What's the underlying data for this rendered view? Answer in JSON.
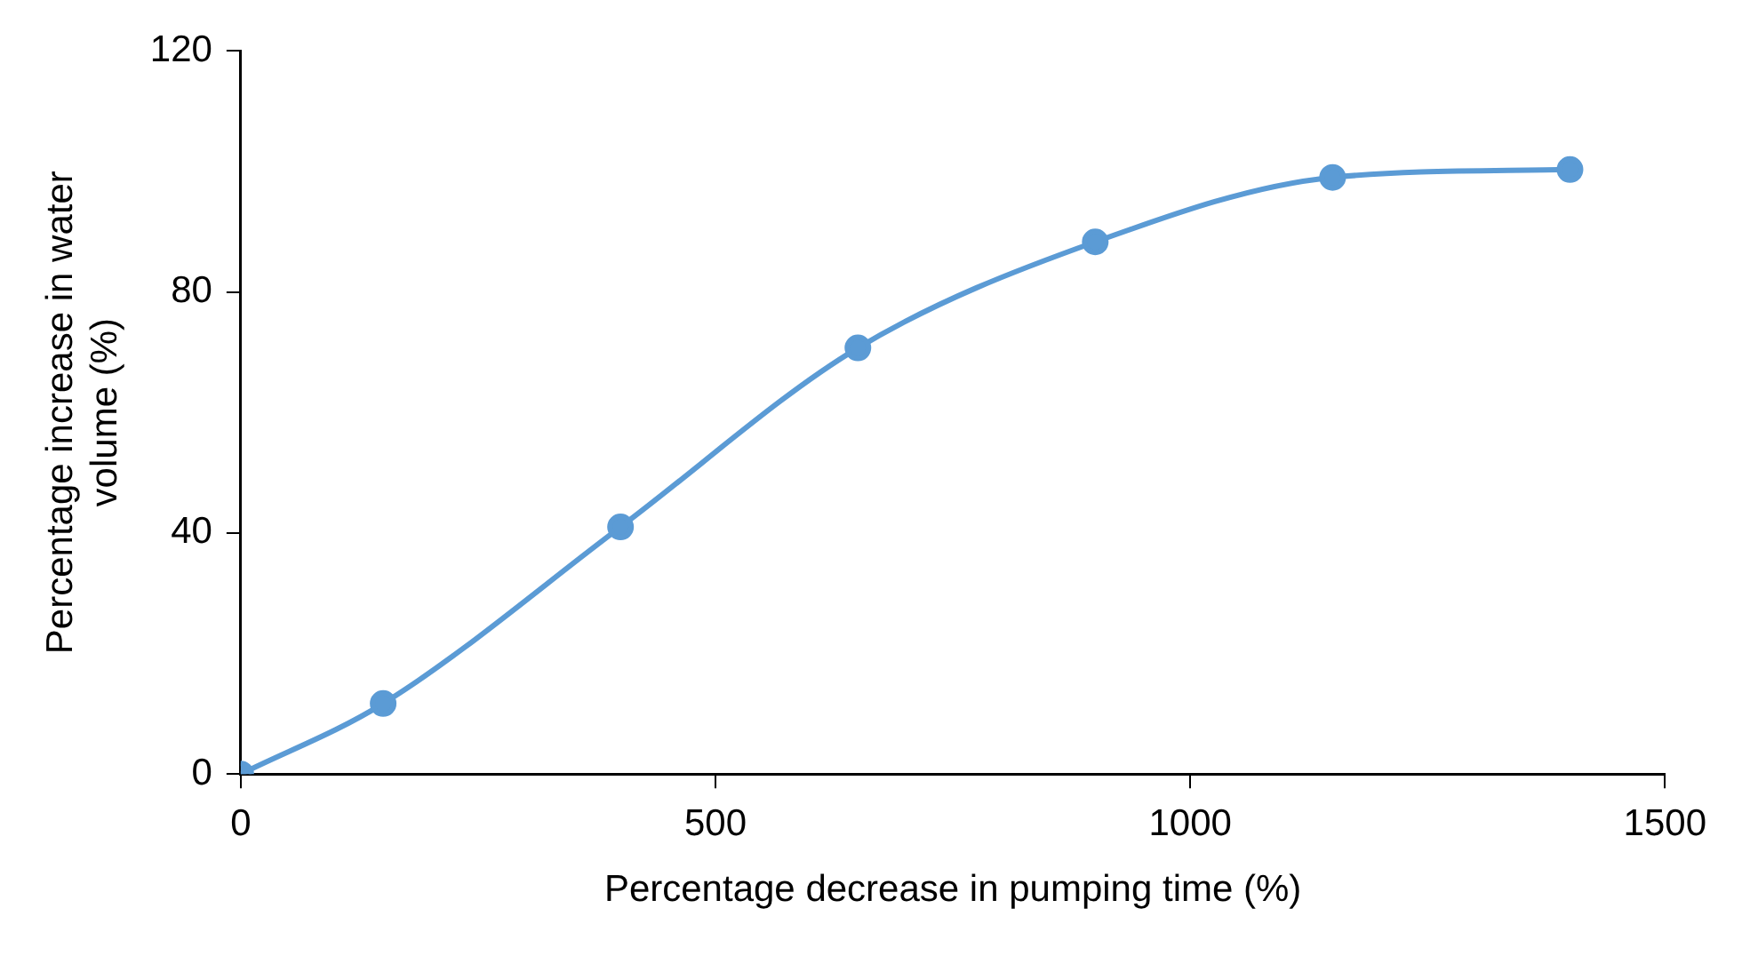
{
  "chart_data": {
    "type": "line",
    "xlabel": "Percentage decrease in pumping time (%)",
    "ylabel": "Percentage increase in water volume (%)",
    "x": [
      0,
      150,
      400,
      650,
      900,
      1150,
      1400
    ],
    "series": [
      {
        "color": "#5b9bd5",
        "values": [
          0,
          11.7,
          41,
          70.7,
          88.3,
          99,
          100.3
        ]
      }
    ],
    "xlim": [
      0,
      1500
    ],
    "xticks": [
      0,
      500,
      1000,
      1500
    ],
    "ylim": [
      0,
      120
    ],
    "yticks": [
      0,
      40,
      80,
      120
    ],
    "grid": false,
    "legend": false,
    "marker": "circle",
    "line_style": "solid"
  }
}
